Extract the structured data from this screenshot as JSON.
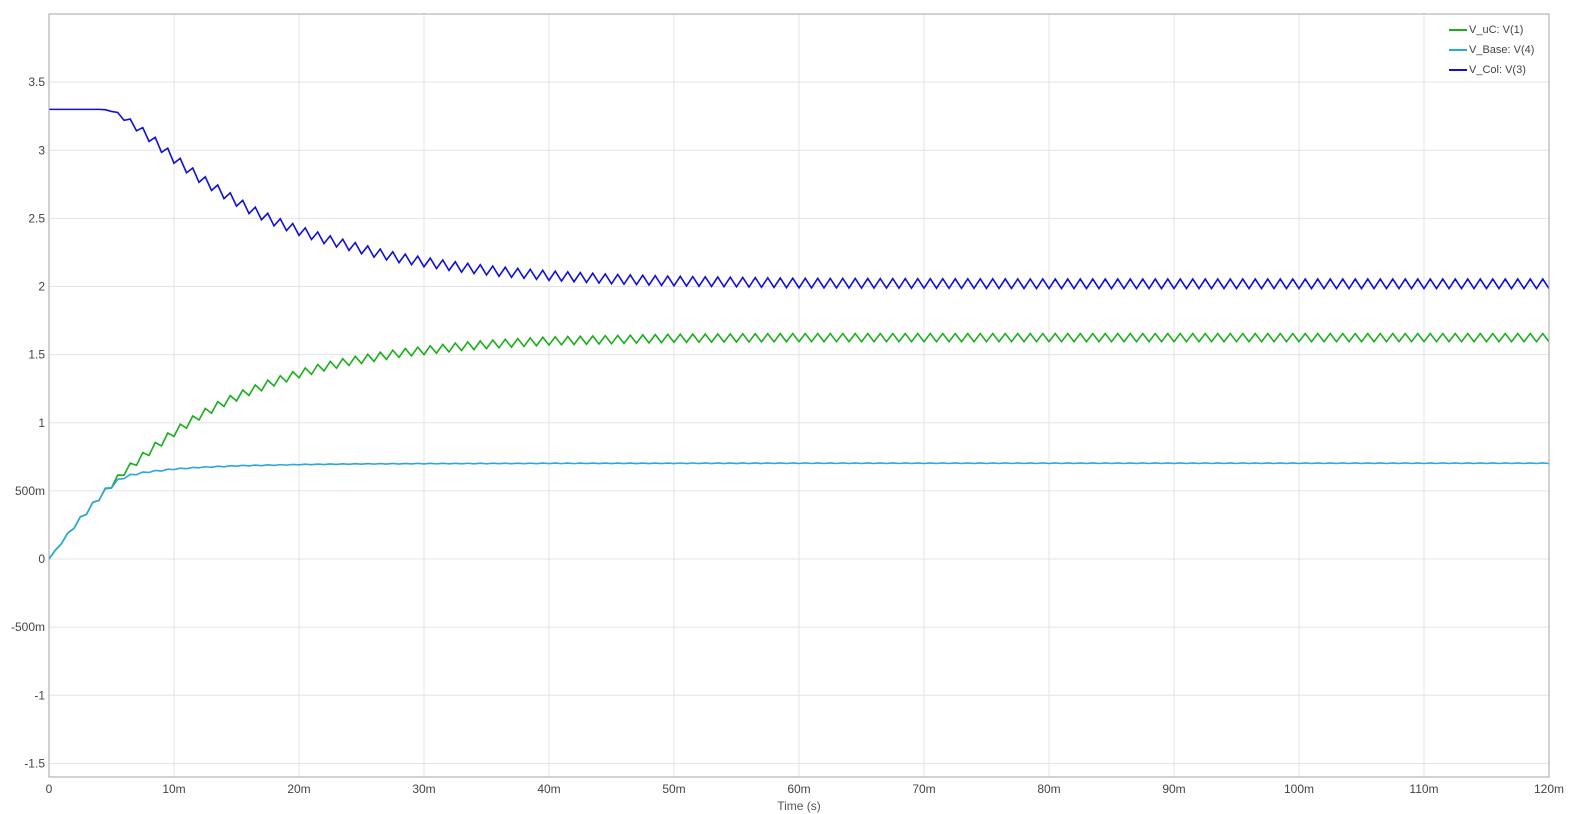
{
  "chart_data": {
    "type": "line",
    "title": "",
    "xlabel": "Time (s)",
    "ylabel": "",
    "xlim": [
      0,
      0.12
    ],
    "ylim": [
      -1.6,
      4.0
    ],
    "grid": true,
    "legend_position": "top-right",
    "x_ticks": [
      {
        "value": 0,
        "label": "0"
      },
      {
        "value": 0.01,
        "label": "10m"
      },
      {
        "value": 0.02,
        "label": "20m"
      },
      {
        "value": 0.03,
        "label": "30m"
      },
      {
        "value": 0.04,
        "label": "40m"
      },
      {
        "value": 0.05,
        "label": "50m"
      },
      {
        "value": 0.06,
        "label": "60m"
      },
      {
        "value": 0.07,
        "label": "70m"
      },
      {
        "value": 0.08,
        "label": "80m"
      },
      {
        "value": 0.09,
        "label": "90m"
      },
      {
        "value": 0.1,
        "label": "100m"
      },
      {
        "value": 0.11,
        "label": "110m"
      },
      {
        "value": 0.12,
        "label": "120m"
      }
    ],
    "y_ticks": [
      {
        "value": 3.5,
        "label": "3.5"
      },
      {
        "value": 3.0,
        "label": "3"
      },
      {
        "value": 2.5,
        "label": "2.5"
      },
      {
        "value": 2.0,
        "label": "2"
      },
      {
        "value": 1.5,
        "label": "1.5"
      },
      {
        "value": 1.0,
        "label": "1"
      },
      {
        "value": 0.5,
        "label": "500m"
      },
      {
        "value": 0.0,
        "label": "0"
      },
      {
        "value": -0.5,
        "label": "-500m"
      },
      {
        "value": -1.0,
        "label": "-1"
      },
      {
        "value": -1.5,
        "label": "-1.5"
      }
    ],
    "ripple_period": 0.001,
    "series": [
      {
        "name": "V_uC: V(1)",
        "color": "#1aae1a",
        "x": [
          0,
          0.002,
          0.004,
          0.006,
          0.008,
          0.01,
          0.012,
          0.014,
          0.016,
          0.018,
          0.02,
          0.022,
          0.024,
          0.026,
          0.028,
          0.03,
          0.033,
          0.036,
          0.04,
          0.045,
          0.05,
          0.06,
          0.08,
          0.1,
          0.12
        ],
        "values": [
          0,
          0.24,
          0.45,
          0.64,
          0.79,
          0.93,
          1.05,
          1.15,
          1.23,
          1.3,
          1.36,
          1.41,
          1.45,
          1.48,
          1.51,
          1.53,
          1.56,
          1.58,
          1.6,
          1.61,
          1.62,
          1.625,
          1.625,
          1.625,
          1.625
        ],
        "ripple": [
          0,
          0.015,
          0.02,
          0.025,
          0.03,
          0.03,
          0.03,
          0.03,
          0.03,
          0.03,
          0.03,
          0.03,
          0.03,
          0.03,
          0.03,
          0.03,
          0.03,
          0.03,
          0.03,
          0.03,
          0.03,
          0.03,
          0.03,
          0.03,
          0.03
        ]
      },
      {
        "name": "V_Base: V(4)",
        "color": "#2ba6de",
        "x": [
          0,
          0.002,
          0.004,
          0.005,
          0.006,
          0.007,
          0.008,
          0.01,
          0.012,
          0.015,
          0.02,
          0.025,
          0.03,
          0.04,
          0.06,
          0.08,
          0.1,
          0.12
        ],
        "values": [
          0,
          0.24,
          0.45,
          0.54,
          0.6,
          0.625,
          0.64,
          0.66,
          0.672,
          0.684,
          0.693,
          0.698,
          0.7,
          0.702,
          0.703,
          0.703,
          0.703,
          0.703
        ],
        "ripple": [
          0,
          0.015,
          0.02,
          0.02,
          0.01,
          0.006,
          0.005,
          0.004,
          0.003,
          0.003,
          0.002,
          0.002,
          0.002,
          0.002,
          0.002,
          0.002,
          0.002,
          0.002
        ]
      },
      {
        "name": "V_Col: V(3)",
        "color": "#1010d8",
        "x": [
          0,
          0.004,
          0.005,
          0.006,
          0.008,
          0.01,
          0.012,
          0.014,
          0.016,
          0.018,
          0.02,
          0.022,
          0.024,
          0.026,
          0.028,
          0.03,
          0.033,
          0.036,
          0.04,
          0.045,
          0.05,
          0.06,
          0.08,
          0.1,
          0.12
        ],
        "values": [
          3.3,
          3.3,
          3.29,
          3.24,
          3.1,
          2.94,
          2.8,
          2.68,
          2.57,
          2.48,
          2.41,
          2.35,
          2.3,
          2.25,
          2.21,
          2.18,
          2.14,
          2.11,
          2.08,
          2.055,
          2.04,
          2.025,
          2.02,
          2.02,
          2.02
        ],
        "ripple": [
          0,
          0,
          0.005,
          0.02,
          0.035,
          0.035,
          0.035,
          0.035,
          0.035,
          0.035,
          0.035,
          0.035,
          0.035,
          0.035,
          0.035,
          0.035,
          0.035,
          0.035,
          0.035,
          0.035,
          0.035,
          0.035,
          0.035,
          0.035,
          0.035
        ]
      }
    ]
  }
}
